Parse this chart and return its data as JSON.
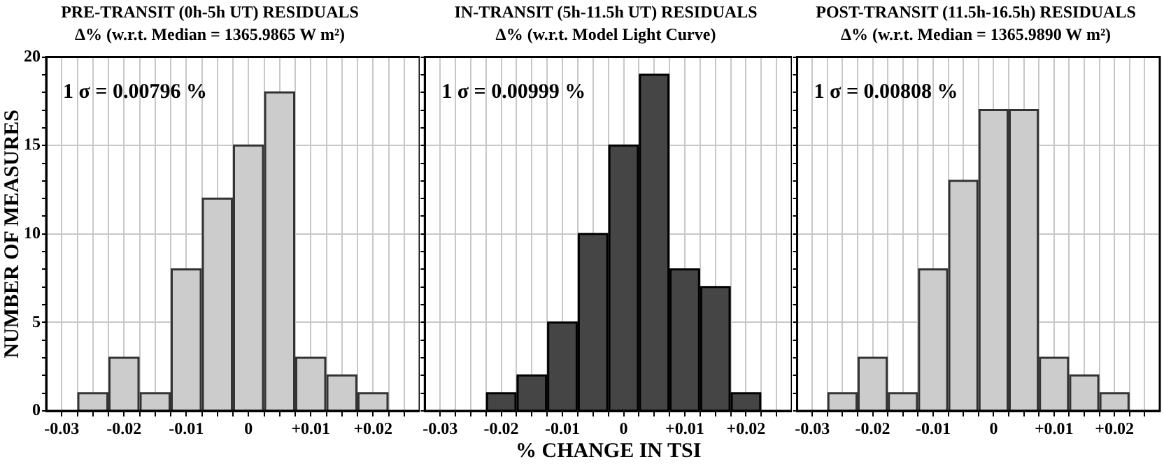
{
  "chart_data": [
    {
      "type": "histogram",
      "title": "PRE-TRANSIT (0h-5h UT) RESIDUALS",
      "subtitle": "Δ% (w.r.t. Median = 1365.9865 W m²)",
      "ylabel": "NUMBER OF MEASURES",
      "annotations": [
        "1 σ = 0.00796 %"
      ],
      "bins": [
        -0.0275,
        -0.0225,
        -0.0175,
        -0.0125,
        -0.0075,
        -0.0025,
        0.0025,
        0.0075,
        0.0125,
        0.0175,
        0.0225
      ],
      "values": [
        1,
        3,
        1,
        8,
        12,
        15,
        18,
        3,
        2,
        1
      ],
      "color": "#cccccc",
      "xlim": [
        -0.0325,
        0.0275
      ],
      "xticks": [
        -0.03,
        {
          "value": -0.0275,
          "label": null
        },
        {
          "value": -0.025,
          "label": null
        },
        {
          "value": -0.0225,
          "label": null
        },
        -0.02,
        {
          "value": -0.0175,
          "label": null
        },
        {
          "value": -0.015,
          "label": null
        },
        {
          "value": -0.0125,
          "label": null
        },
        -0.01,
        {
          "value": -0.0075,
          "label": null
        },
        {
          "value": -0.005,
          "label": null
        },
        {
          "value": -0.0025,
          "label": null
        },
        0,
        {
          "value": 0.0025,
          "label": null
        },
        {
          "value": 0.005,
          "label": null
        },
        {
          "value": 0.0075,
          "label": null
        },
        {
          "value": 0.01,
          "label": "+0.01"
        },
        {
          "value": 0.0125,
          "label": null
        },
        {
          "value": 0.015,
          "label": null
        },
        {
          "value": 0.0175,
          "label": null
        },
        {
          "value": 0.02,
          "label": "+0.02"
        },
        {
          "value": 0.0225,
          "label": null
        },
        {
          "value": 0.025,
          "label": null
        }
      ],
      "ylim": [
        0,
        20
      ],
      "yticks": [
        0,
        {
          "value": 1,
          "label": null
        },
        {
          "value": 2,
          "label": null
        },
        {
          "value": 3,
          "label": null
        },
        {
          "value": 4,
          "label": null
        },
        5,
        {
          "value": 6,
          "label": null
        },
        {
          "value": 7,
          "label": null
        },
        {
          "value": 8,
          "label": null
        },
        {
          "value": 9,
          "label": null
        },
        10,
        {
          "value": 11,
          "label": null
        },
        {
          "value": 12,
          "label": null
        },
        {
          "value": 13,
          "label": null
        },
        {
          "value": 14,
          "label": null
        },
        15,
        {
          "value": 16,
          "label": null
        },
        {
          "value": 17,
          "label": null
        },
        {
          "value": 18,
          "label": null
        },
        {
          "value": 19,
          "label": null
        },
        20
      ],
      "grid": true
    },
    {
      "type": "histogram",
      "title": "IN-TRANSIT (5h-11.5h UT) RESIDUALS",
      "subtitle": "Δ% (w.r.t. Model Light Curve)",
      "xlabel": "% CHANGE IN TSI",
      "annotations": [
        "1 σ = 0.00999 %"
      ],
      "bins": [
        -0.0225,
        -0.0175,
        -0.0125,
        -0.0075,
        -0.0025,
        0.0025,
        0.0075,
        0.0125,
        0.0175,
        0.0225
      ],
      "values": [
        1,
        2,
        5,
        10,
        15,
        19,
        8,
        7,
        1
      ],
      "color": "#454545",
      "xlim": [
        -0.0325,
        0.0275
      ],
      "xticks": [
        -0.03,
        {
          "value": -0.0275,
          "label": null
        },
        {
          "value": -0.025,
          "label": null
        },
        {
          "value": -0.0225,
          "label": null
        },
        -0.02,
        {
          "value": -0.0175,
          "label": null
        },
        {
          "value": -0.015,
          "label": null
        },
        {
          "value": -0.0125,
          "label": null
        },
        -0.01,
        {
          "value": -0.0075,
          "label": null
        },
        {
          "value": -0.005,
          "label": null
        },
        {
          "value": -0.0025,
          "label": null
        },
        0,
        {
          "value": 0.0025,
          "label": null
        },
        {
          "value": 0.005,
          "label": null
        },
        {
          "value": 0.0075,
          "label": null
        },
        {
          "value": 0.01,
          "label": "+0.01"
        },
        {
          "value": 0.0125,
          "label": null
        },
        {
          "value": 0.015,
          "label": null
        },
        {
          "value": 0.0175,
          "label": null
        },
        {
          "value": 0.02,
          "label": "+0.02"
        },
        {
          "value": 0.0225,
          "label": null
        },
        {
          "value": 0.025,
          "label": null
        }
      ],
      "ylim": [
        0,
        20
      ],
      "yticks": [
        0,
        {
          "value": 1,
          "label": null
        },
        {
          "value": 2,
          "label": null
        },
        {
          "value": 3,
          "label": null
        },
        {
          "value": 4,
          "label": null
        },
        5,
        {
          "value": 6,
          "label": null
        },
        {
          "value": 7,
          "label": null
        },
        {
          "value": 8,
          "label": null
        },
        {
          "value": 9,
          "label": null
        },
        10,
        {
          "value": 11,
          "label": null
        },
        {
          "value": 12,
          "label": null
        },
        {
          "value": 13,
          "label": null
        },
        {
          "value": 14,
          "label": null
        },
        15,
        {
          "value": 16,
          "label": null
        },
        {
          "value": 17,
          "label": null
        },
        {
          "value": 18,
          "label": null
        },
        {
          "value": 19,
          "label": null
        },
        20
      ],
      "grid": true,
      "tick_labels": "x"
    },
    {
      "type": "histogram",
      "title": "POST-TRANSIT (11.5h-16.5h) RESIDUALS",
      "subtitle": "Δ% (w.r.t. Median = 1365.9890 W m²)",
      "annotations": [
        "1 σ = 0.00808 %"
      ],
      "bins": [
        -0.0275,
        -0.0225,
        -0.0175,
        -0.0125,
        -0.0075,
        -0.0025,
        0.0025,
        0.0075,
        0.0125,
        0.0175,
        0.0225
      ],
      "values": [
        1,
        3,
        1,
        8,
        13,
        17,
        17,
        3,
        2,
        1
      ],
      "color": "#cccccc",
      "xlim": [
        -0.0325,
        0.0275
      ],
      "xticks": [
        -0.03,
        {
          "value": -0.0275,
          "label": null
        },
        {
          "value": -0.025,
          "label": null
        },
        {
          "value": -0.0225,
          "label": null
        },
        -0.02,
        {
          "value": -0.0175,
          "label": null
        },
        {
          "value": -0.015,
          "label": null
        },
        {
          "value": -0.0125,
          "label": null
        },
        -0.01,
        {
          "value": -0.0075,
          "label": null
        },
        {
          "value": -0.005,
          "label": null
        },
        {
          "value": -0.0025,
          "label": null
        },
        0,
        {
          "value": 0.0025,
          "label": null
        },
        {
          "value": 0.005,
          "label": null
        },
        {
          "value": 0.0075,
          "label": null
        },
        {
          "value": 0.01,
          "label": "+0.01"
        },
        {
          "value": 0.0125,
          "label": null
        },
        {
          "value": 0.015,
          "label": null
        },
        {
          "value": 0.0175,
          "label": null
        },
        {
          "value": 0.02,
          "label": "+0.02"
        },
        {
          "value": 0.0225,
          "label": null
        },
        {
          "value": 0.025,
          "label": null
        }
      ],
      "ylim": [
        0,
        20
      ],
      "yticks": [
        0,
        {
          "value": 1,
          "label": null
        },
        {
          "value": 2,
          "label": null
        },
        {
          "value": 3,
          "label": null
        },
        {
          "value": 4,
          "label": null
        },
        5,
        {
          "value": 6,
          "label": null
        },
        {
          "value": 7,
          "label": null
        },
        {
          "value": 8,
          "label": null
        },
        {
          "value": 9,
          "label": null
        },
        10,
        {
          "value": 11,
          "label": null
        },
        {
          "value": 12,
          "label": null
        },
        {
          "value": 13,
          "label": null
        },
        {
          "value": 14,
          "label": null
        },
        15,
        {
          "value": 16,
          "label": null
        },
        {
          "value": 17,
          "label": null
        },
        {
          "value": 18,
          "label": null
        },
        {
          "value": 19,
          "label": null
        },
        20
      ],
      "grid": true,
      "tick_labels": "x"
    }
  ]
}
